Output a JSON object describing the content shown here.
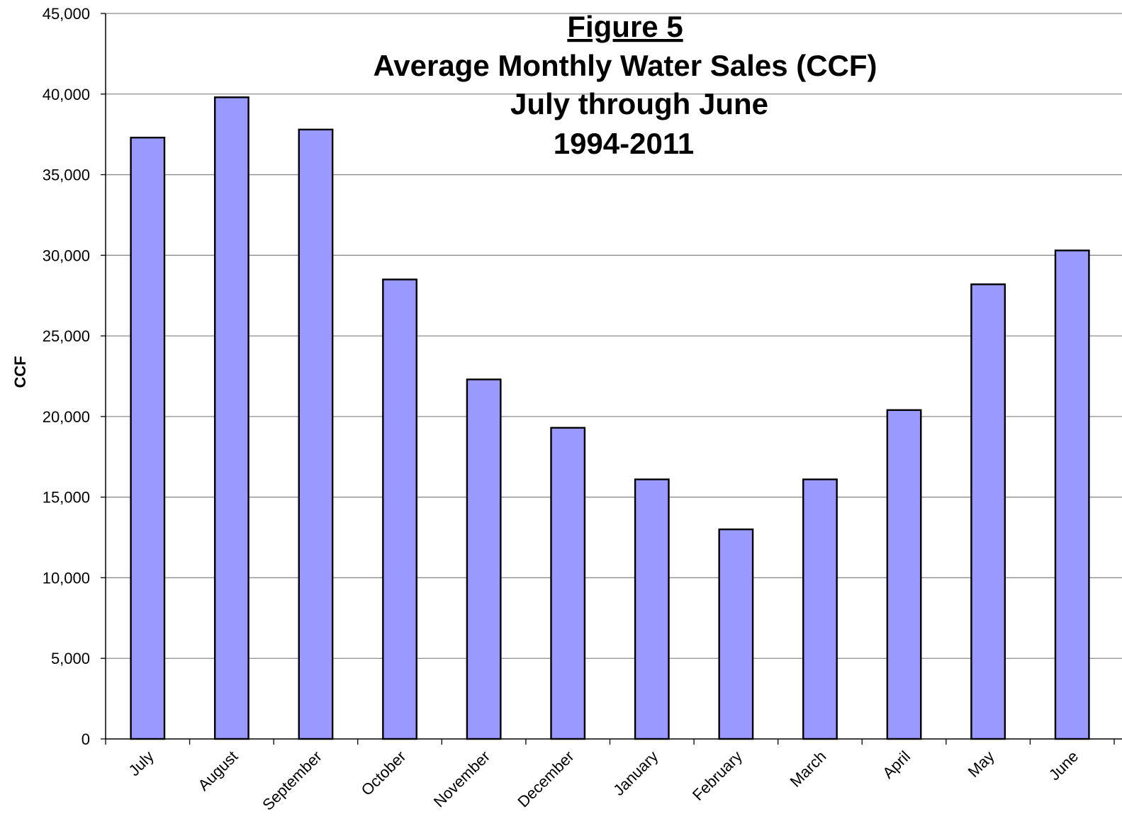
{
  "chart_data": {
    "type": "bar",
    "title_lines": [
      "Figure 5",
      "Average Monthly Water Sales (CCF)",
      "July through June",
      "1994-2011"
    ],
    "xlabel": "",
    "ylabel": "CCF",
    "ylim": [
      0,
      45000
    ],
    "yticks": [
      0,
      5000,
      10000,
      15000,
      20000,
      25000,
      30000,
      35000,
      40000,
      45000
    ],
    "ytick_labels": [
      "0",
      "5,000",
      "10,000",
      "15,000",
      "20,000",
      "25,000",
      "30,000",
      "35,000",
      "40,000",
      "45,000"
    ],
    "categories": [
      "July",
      "August",
      "September",
      "October",
      "November",
      "December",
      "January",
      "February",
      "March",
      "April",
      "May",
      "June"
    ],
    "values": [
      37300,
      39800,
      37800,
      28500,
      22300,
      19300,
      16100,
      13000,
      16100,
      20400,
      28200,
      30300
    ],
    "bar_color": "#9999ff",
    "bar_outline": "#000000",
    "grid": true,
    "legend": "none"
  }
}
